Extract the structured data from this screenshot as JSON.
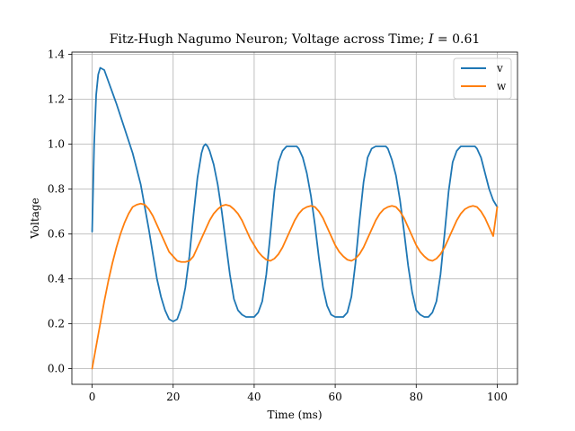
{
  "chart_data": {
    "type": "line",
    "title": "Fitz-Hugh Nagumo Neuron; Voltage across Time; I = 0.61",
    "title_prefix": "Fitz-Hugh Nagumo Neuron; Voltage across Time; ",
    "title_var": "I",
    "title_suffix": " = 0.61",
    "xlabel": "Time (ms)",
    "ylabel": "Voltage",
    "xlim": [
      -5,
      105
    ],
    "ylim": [
      -0.07,
      1.41
    ],
    "xticks": [
      0,
      20,
      40,
      60,
      80,
      100
    ],
    "yticks": [
      0.0,
      0.2,
      0.4,
      0.6,
      0.8,
      1.0,
      1.2,
      1.4
    ],
    "xtick_labels": [
      "0",
      "20",
      "40",
      "60",
      "80",
      "100"
    ],
    "ytick_labels": [
      "0.0",
      "0.2",
      "0.4",
      "0.6",
      "0.8",
      "1.0",
      "1.2",
      "1.4"
    ],
    "grid": true,
    "legend_position": "top-right",
    "series": [
      {
        "name": "v",
        "color": "#1f77b4",
        "x": [
          0,
          0.5,
          1,
          1.5,
          2,
          3,
          4,
          6,
          8,
          10,
          12,
          14,
          16,
          17,
          18,
          19,
          20,
          21,
          22,
          23,
          24,
          25,
          26,
          27,
          27.5,
          28,
          28.5,
          29,
          30,
          31,
          32,
          33,
          34,
          35,
          36,
          37,
          38,
          39,
          40,
          41,
          42,
          43,
          44,
          45,
          46,
          47,
          48,
          49,
          50,
          50.5,
          51,
          52,
          53,
          54,
          55,
          56,
          57,
          58,
          59,
          60,
          61,
          62,
          63,
          64,
          65,
          66,
          67,
          68,
          69,
          70,
          71,
          72,
          72.5,
          73,
          74,
          75,
          76,
          77,
          78,
          79,
          80,
          81,
          82,
          83,
          84,
          85,
          86,
          87,
          88,
          89,
          90,
          91,
          92,
          93,
          94,
          94.5,
          95,
          96,
          97,
          98,
          99,
          100
        ],
        "y": [
          0.61,
          1.0,
          1.22,
          1.31,
          1.34,
          1.33,
          1.28,
          1.18,
          1.07,
          0.96,
          0.82,
          0.62,
          0.4,
          0.32,
          0.26,
          0.22,
          0.21,
          0.22,
          0.27,
          0.36,
          0.5,
          0.68,
          0.85,
          0.96,
          0.99,
          1.0,
          0.99,
          0.97,
          0.91,
          0.82,
          0.7,
          0.56,
          0.42,
          0.31,
          0.26,
          0.24,
          0.23,
          0.23,
          0.23,
          0.25,
          0.3,
          0.42,
          0.6,
          0.79,
          0.92,
          0.97,
          0.99,
          0.99,
          0.99,
          0.99,
          0.98,
          0.94,
          0.87,
          0.77,
          0.64,
          0.49,
          0.36,
          0.28,
          0.24,
          0.23,
          0.23,
          0.23,
          0.25,
          0.32,
          0.47,
          0.66,
          0.83,
          0.94,
          0.98,
          0.99,
          0.99,
          0.99,
          0.99,
          0.98,
          0.93,
          0.86,
          0.75,
          0.61,
          0.46,
          0.34,
          0.26,
          0.24,
          0.23,
          0.23,
          0.25,
          0.3,
          0.42,
          0.6,
          0.79,
          0.92,
          0.97,
          0.99,
          0.99,
          0.99,
          0.99,
          0.99,
          0.98,
          0.94,
          0.87,
          0.8,
          0.75,
          0.72
        ]
      },
      {
        "name": "w",
        "color": "#ff7f0e",
        "x": [
          0,
          1,
          2,
          3,
          4,
          5,
          6,
          7,
          8,
          9,
          10,
          11,
          12,
          13,
          14,
          15,
          16,
          17,
          18,
          19,
          20,
          21,
          22,
          23,
          24,
          25,
          26,
          27,
          28,
          29,
          30,
          31,
          32,
          33,
          34,
          35,
          36,
          37,
          38,
          39,
          40,
          41,
          42,
          43,
          44,
          45,
          46,
          47,
          48,
          49,
          50,
          51,
          52,
          53,
          54,
          55,
          56,
          57,
          58,
          59,
          60,
          61,
          62,
          63,
          64,
          65,
          66,
          67,
          68,
          69,
          70,
          71,
          72,
          73,
          74,
          75,
          76,
          77,
          78,
          79,
          80,
          81,
          82,
          83,
          84,
          85,
          86,
          87,
          88,
          89,
          90,
          91,
          92,
          93,
          94,
          95,
          96,
          97,
          98,
          99,
          100
        ],
        "y": [
          0.0,
          0.1,
          0.2,
          0.3,
          0.39,
          0.47,
          0.54,
          0.6,
          0.65,
          0.69,
          0.72,
          0.73,
          0.735,
          0.73,
          0.71,
          0.68,
          0.64,
          0.6,
          0.56,
          0.52,
          0.5,
          0.48,
          0.475,
          0.475,
          0.48,
          0.5,
          0.54,
          0.58,
          0.62,
          0.66,
          0.69,
          0.71,
          0.725,
          0.73,
          0.725,
          0.71,
          0.69,
          0.66,
          0.62,
          0.58,
          0.55,
          0.52,
          0.5,
          0.485,
          0.48,
          0.49,
          0.51,
          0.54,
          0.58,
          0.62,
          0.66,
          0.69,
          0.71,
          0.72,
          0.725,
          0.72,
          0.7,
          0.67,
          0.63,
          0.59,
          0.55,
          0.52,
          0.5,
          0.485,
          0.48,
          0.49,
          0.51,
          0.54,
          0.58,
          0.62,
          0.66,
          0.69,
          0.71,
          0.72,
          0.725,
          0.72,
          0.7,
          0.67,
          0.63,
          0.59,
          0.55,
          0.52,
          0.5,
          0.485,
          0.48,
          0.49,
          0.51,
          0.54,
          0.58,
          0.62,
          0.66,
          0.69,
          0.71,
          0.72,
          0.725,
          0.72,
          0.7,
          0.67,
          0.63,
          0.59,
          0.72
        ]
      }
    ]
  }
}
